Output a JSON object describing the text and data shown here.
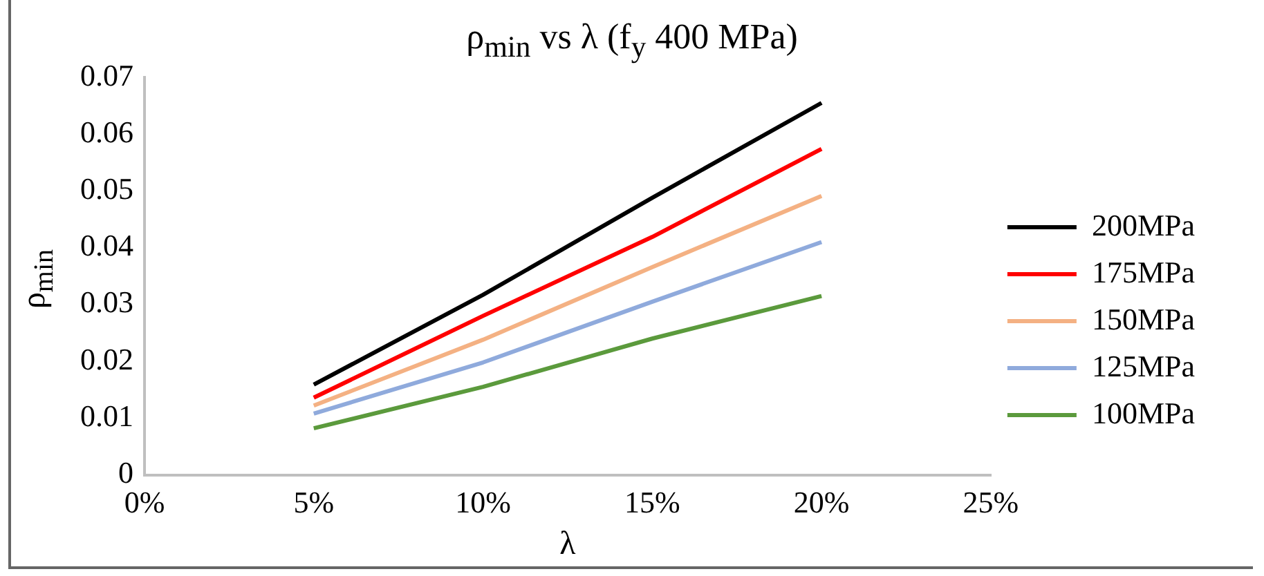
{
  "chart_data": {
    "type": "line",
    "title": "ρ$_{min}$ vs λ (f$_{y}$ 400 MPa)",
    "xlabel": "λ",
    "ylabel": "ρ$_{min}$",
    "x": [
      0.05,
      0.1,
      0.15,
      0.2
    ],
    "series": [
      {
        "name": "200MPa",
        "color": "#000000",
        "values": [
          0.0159,
          0.0317,
          0.0488,
          0.0655
        ]
      },
      {
        "name": "175MPa",
        "color": "#ff0000",
        "values": [
          0.0136,
          0.028,
          0.0419,
          0.0574
        ]
      },
      {
        "name": "150MPa",
        "color": "#f4b183",
        "values": [
          0.0122,
          0.0238,
          0.0366,
          0.0491
        ]
      },
      {
        "name": "125MPa",
        "color": "#8faadc",
        "values": [
          0.0108,
          0.0198,
          0.0305,
          0.041
        ]
      },
      {
        "name": "100MPa",
        "color": "#5b9a3c",
        "values": [
          0.0082,
          0.0155,
          0.024,
          0.0315
        ]
      }
    ],
    "xlim": [
      0,
      0.25
    ],
    "xticks": [
      {
        "value": 0,
        "label": "0%"
      },
      {
        "value": 0.05,
        "label": "5%"
      },
      {
        "value": 0.1,
        "label": "10%"
      },
      {
        "value": 0.15,
        "label": "15%"
      },
      {
        "value": 0.2,
        "label": "20%"
      },
      {
        "value": 0.25,
        "label": "25%"
      }
    ],
    "ylim": [
      0,
      0.07
    ],
    "yticks": [
      0,
      0.01,
      0.02,
      0.03,
      0.04,
      0.05,
      0.06,
      0.07
    ],
    "grid": false,
    "legend": "right",
    "marker": "none",
    "line_style": "solid"
  }
}
